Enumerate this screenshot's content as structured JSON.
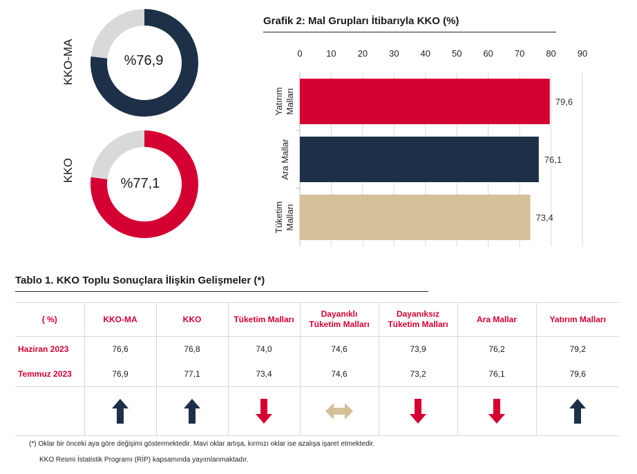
{
  "donuts": [
    {
      "label": "KKO-MA",
      "value_text": "%76,9",
      "value": 76.9,
      "color": "#1d3047",
      "rest_color": "#d9d9d9"
    },
    {
      "label": "KKO",
      "value_text": "%77,1",
      "value": 77.1,
      "color": "#d50032",
      "rest_color": "#d9d9d9"
    }
  ],
  "chart_data": {
    "type": "bar",
    "orientation": "horizontal",
    "title": "Grafik 2: Mal Grupları İtibarıyla KKO (%)",
    "xlim": [
      0,
      90
    ],
    "xticks": [
      "0",
      "10",
      "20",
      "30",
      "40",
      "50",
      "60",
      "70",
      "80",
      "90"
    ],
    "x_axis_position": "top",
    "grid": true,
    "categories": [
      {
        "line1": "Yatırım",
        "line2": "Malları"
      },
      {
        "line1": "Ara Mallar",
        "line2": ""
      },
      {
        "line1": "Tüketim",
        "line2": "Malları"
      }
    ],
    "values": [
      79.6,
      76.1,
      73.4
    ],
    "data_labels": [
      "79,6",
      "76,1",
      "73,4"
    ],
    "colors": [
      "#d50032",
      "#1d3047",
      "#d6c09a"
    ]
  },
  "table": {
    "title": "Tablo 1. KKO Toplu Sonuçlara İlişkin Gelişmeler (*)",
    "headers": [
      {
        "line1": "( %)",
        "line2": ""
      },
      {
        "line1": "KKO-MA",
        "line2": ""
      },
      {
        "line1": "KKO",
        "line2": ""
      },
      {
        "line1": "Tüketim Malları",
        "line2": ""
      },
      {
        "line1": "Dayanıklı",
        "line2": "Tüketim Malları"
      },
      {
        "line1": "Dayanıksız",
        "line2": "Tüketim Malları"
      },
      {
        "line1": "Ara Mallar",
        "line2": ""
      },
      {
        "line1": "Yatırım Malları",
        "line2": ""
      }
    ],
    "rows": [
      {
        "label": "Haziran 2023",
        "values": [
          "76,6",
          "76,8",
          "74,0",
          "74,6",
          "73,9",
          "76,2",
          "79,2"
        ]
      },
      {
        "label": "Temmuz 2023",
        "values": [
          "76,9",
          "77,1",
          "73,4",
          "74,6",
          "73,2",
          "76,1",
          "79,6"
        ]
      }
    ],
    "arrows": [
      {
        "name": "up-arrow-icon",
        "dir": "up",
        "color": "#1d3047"
      },
      {
        "name": "up-arrow-icon",
        "dir": "up",
        "color": "#1d3047"
      },
      {
        "name": "down-arrow-icon",
        "dir": "down",
        "color": "#d50032"
      },
      {
        "name": "left-right-arrow-icon",
        "dir": "both",
        "color": "#d6c09a"
      },
      {
        "name": "down-arrow-icon",
        "dir": "down",
        "color": "#d50032"
      },
      {
        "name": "down-arrow-icon",
        "dir": "down",
        "color": "#d50032"
      },
      {
        "name": "up-arrow-icon",
        "dir": "up",
        "color": "#1d3047"
      }
    ]
  },
  "footnotes": {
    "note1": "(*) Oklar bir önceki aya göre değişimi göstermektedir. Mavi oklar artışa, kırmızı oklar ise azalışa işaret etmektedir.",
    "note2": "KKO Resmi İstatistik Programı (RİP) kapsamında yayımlanmaktadır."
  }
}
